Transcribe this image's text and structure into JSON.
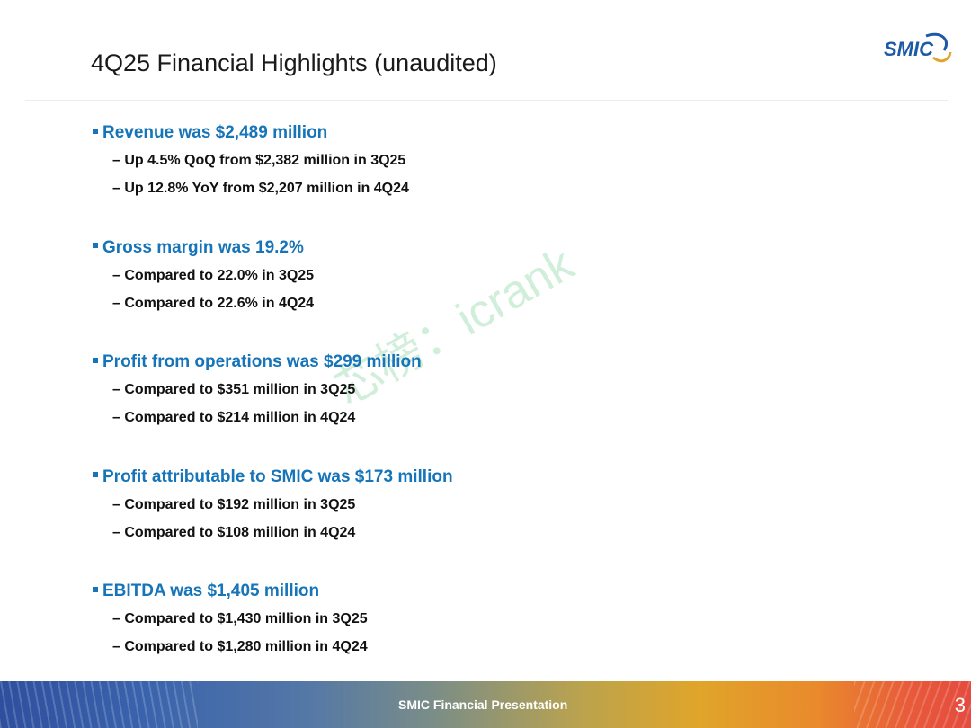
{
  "slide": {
    "title": "4Q25 Financial Highlights (unaudited)"
  },
  "logo": {
    "text": "SMIC",
    "color": "#1c5aa6"
  },
  "bullets": [
    {
      "text": "Revenue was $2,489 million",
      "subs": [
        "– Up 4.5% QoQ from $2,382 million in 3Q25",
        "– Up 12.8% YoY from $2,207 million in 4Q24"
      ]
    },
    {
      "text": "Gross margin was 19.2%",
      "subs": [
        "– Compared to 22.0% in 3Q25",
        "– Compared to 22.6% in 4Q24"
      ]
    },
    {
      "text": "Profit from operations was $299 million",
      "subs": [
        "– Compared to $351 million in 3Q25",
        "– Compared to $214 million in 4Q24"
      ]
    },
    {
      "text": "Profit attributable to SMIC was $173 million",
      "subs": [
        "– Compared to $192  million in 3Q25",
        "– Compared to $108 million in 4Q24"
      ]
    },
    {
      "text": "EBITDA was $1,405 million",
      "subs": [
        "– Compared to $1,430 million in 3Q25",
        "– Compared to $1,280 million in 4Q24"
      ]
    }
  ],
  "watermark": "芯榜：icrank",
  "footer": {
    "text": "SMIC Financial Presentation",
    "page_number": "3"
  },
  "colors": {
    "bullet_heading": "#1674b8",
    "sub_text": "#111111"
  }
}
